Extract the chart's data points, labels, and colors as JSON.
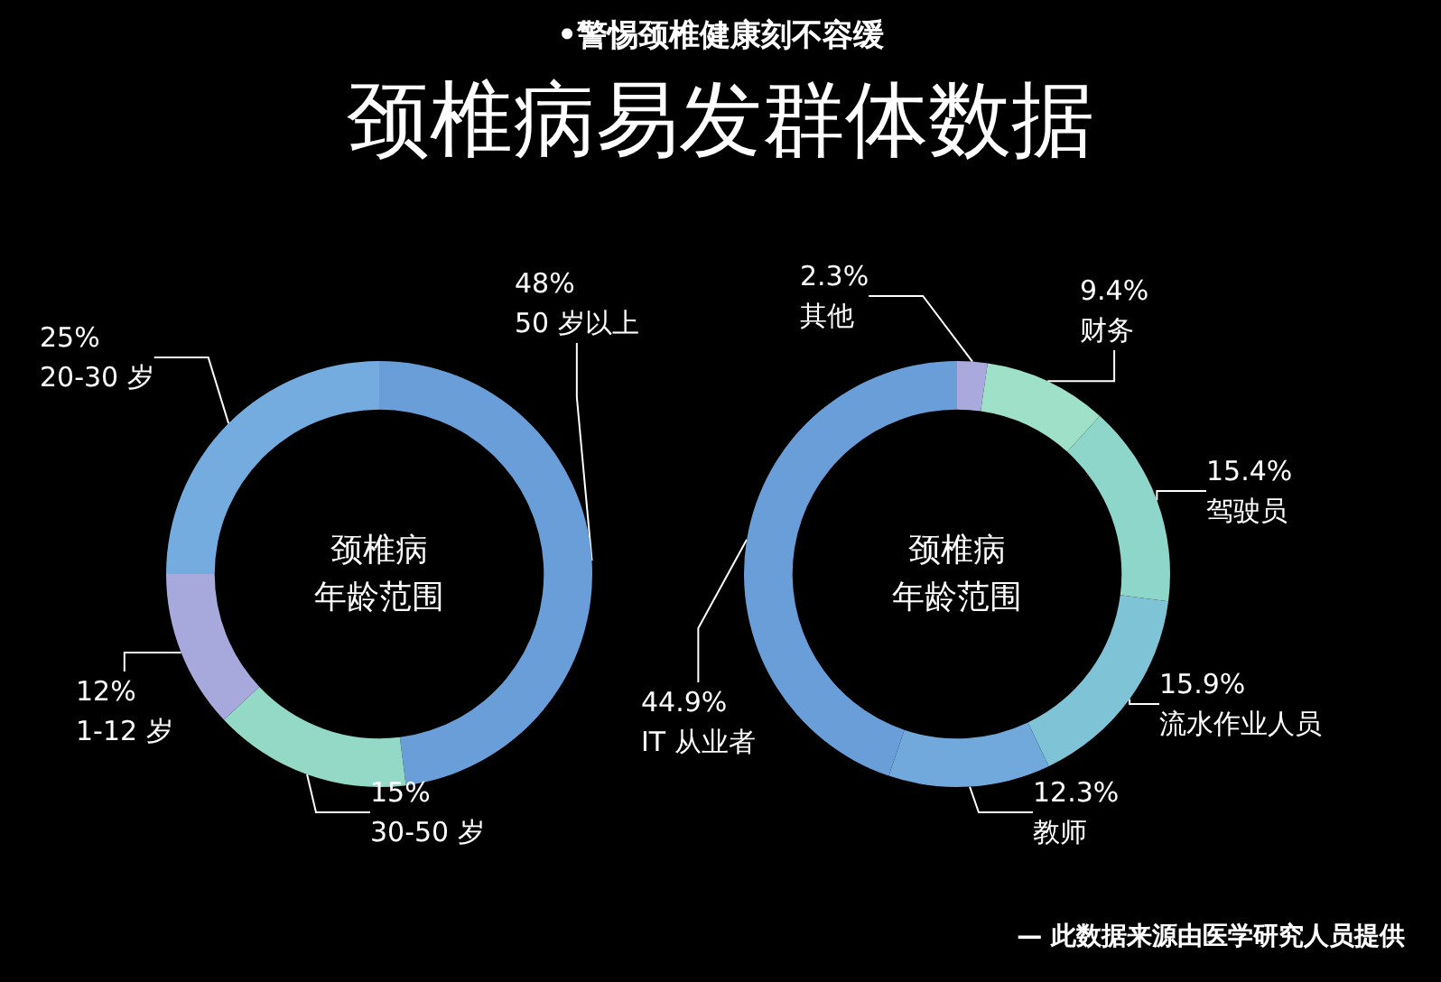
{
  "chart_data": [
    {
      "type": "donut",
      "subtitle": "•警惕颈椎健康刻不容缓",
      "title": "颈椎病易发群体数据",
      "categories": [
        "50 岁以上",
        "30-50 岁",
        "1-12 岁",
        "20-30 岁"
      ],
      "values": [
        48,
        15,
        12,
        25
      ],
      "colors": [
        "#6a9ed9",
        "#93d9c5",
        "#a7a8dc",
        "#74ace0"
      ],
      "value_labels": [
        "48%",
        "15%",
        "12%",
        "25%"
      ],
      "annotations": [
        "颈椎病",
        "年龄范围"
      ]
    },
    {
      "type": "donut",
      "categories": [
        "其他",
        "财务",
        "驾驶员",
        "流水作业人员",
        "教师",
        "IT 从业者"
      ],
      "values": [
        2.3,
        9.4,
        15.4,
        15.9,
        12.3,
        44.9
      ],
      "colors": [
        "#a9a9de",
        "#9ee0c8",
        "#8fd6ca",
        "#7fc3d6",
        "#72a9dd",
        "#6a9ed9"
      ],
      "value_labels": [
        "2.3%",
        "9.4%",
        "15.4%",
        "15.9%",
        "12.3%",
        "44.9%"
      ],
      "annotations": [
        "颈椎病",
        "年龄范围",
        "— 此数据来源由医学研究人员提供"
      ]
    }
  ]
}
